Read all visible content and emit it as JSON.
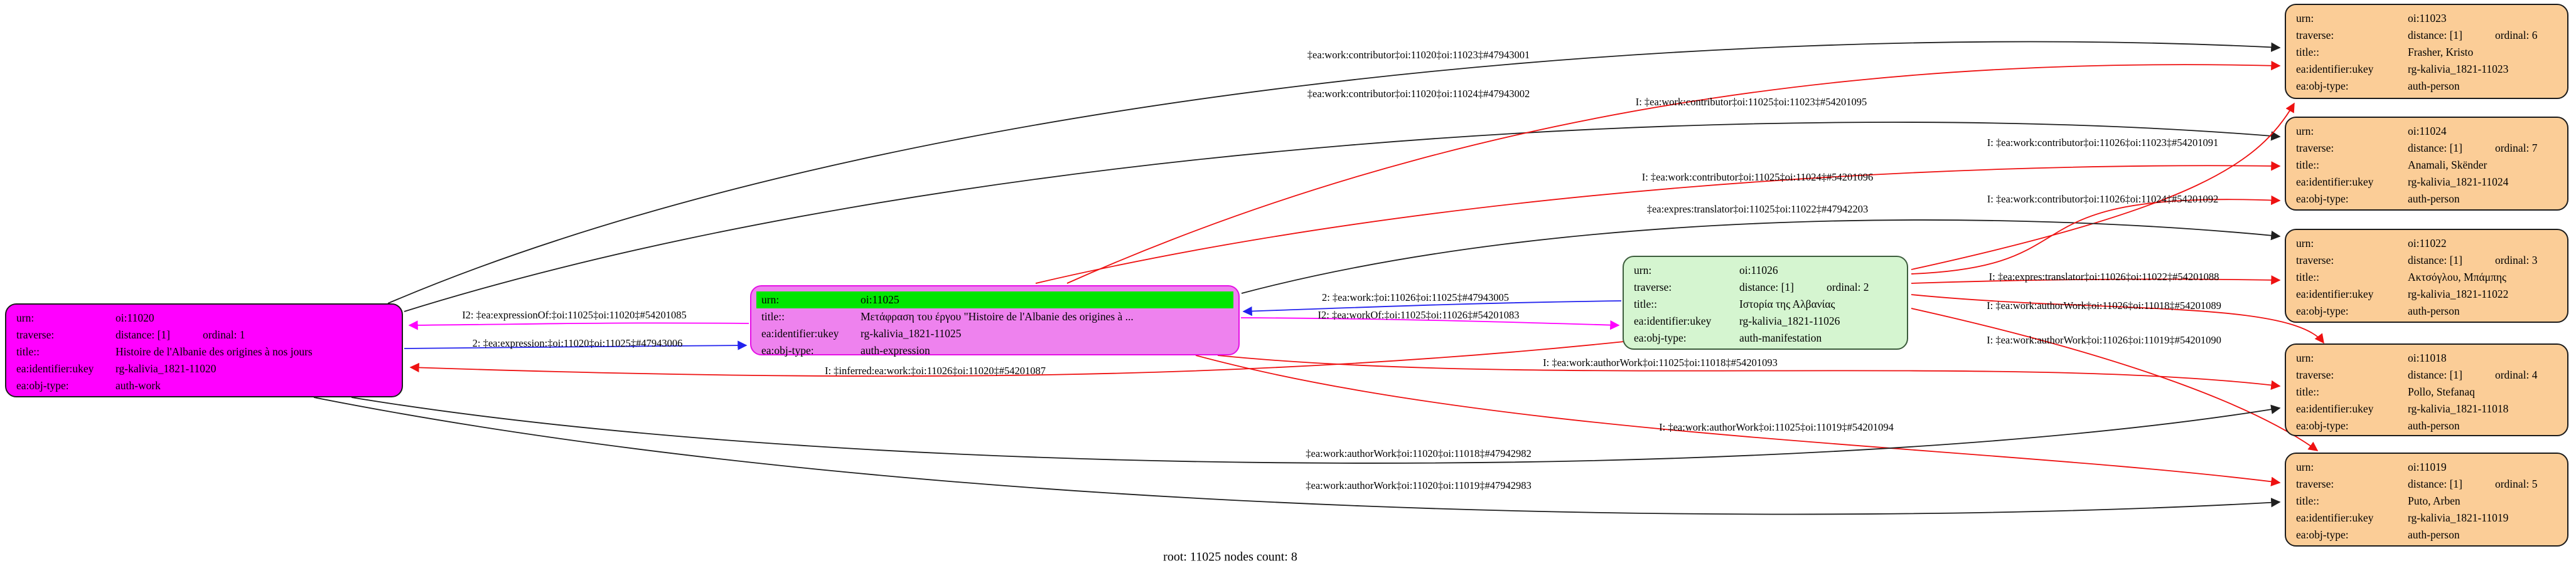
{
  "footer": "root: 11025 nodes count: 8",
  "colors": {
    "black": "#1f1f1f",
    "red": "#ee1111",
    "blue": "#2222ee",
    "magenta": "#ff00ff",
    "work_fill": "#ff00ff",
    "expression_fill": "#ee82ee",
    "expression_urn_highlight": "#00e500",
    "manifestation_fill": "#d5f5d0",
    "person_fill": "#fbcd97"
  },
  "nodes": [
    {
      "id": "oi:11020",
      "fill": "work_fill",
      "type": "auth-work",
      "rows": [
        {
          "key": "urn:",
          "value": "oi:11020"
        },
        {
          "key": "traverse:",
          "value": "distance: [1]",
          "value2": "ordinal: 1"
        },
        {
          "key": "title::",
          "value": "Histoire de l'Albanie des origines à nos jours"
        },
        {
          "key": "ea:identifier:ukey",
          "value": "rg-kalivia_1821-11020"
        },
        {
          "key": "ea:obj-type:",
          "value": "auth-work"
        }
      ]
    },
    {
      "id": "oi:11025",
      "fill": "expression_fill",
      "type": "auth-expression",
      "rows": [
        {
          "key": "urn:",
          "value": "oi:11025",
          "highlight": true
        },
        {
          "key": "title::",
          "value": "Μετάφραση του έργου \"Histoire de l'Albanie des origines à ..."
        },
        {
          "key": "ea:identifier:ukey",
          "value": "rg-kalivia_1821-11025"
        },
        {
          "key": "ea:obj-type:",
          "value": "auth-expression"
        }
      ]
    },
    {
      "id": "oi:11026",
      "fill": "manifestation_fill",
      "type": "auth-manifestation",
      "rows": [
        {
          "key": "urn:",
          "value": "oi:11026"
        },
        {
          "key": "traverse:",
          "value": "distance: [1]",
          "value2": "ordinal: 2"
        },
        {
          "key": "title::",
          "value": "Ιστορία της Αλβανίας"
        },
        {
          "key": "ea:identifier:ukey",
          "value": "rg-kalivia_1821-11026"
        },
        {
          "key": "ea:obj-type:",
          "value": "auth-manifestation"
        }
      ]
    },
    {
      "id": "oi:11023",
      "fill": "person_fill",
      "type": "auth-person",
      "rows": [
        {
          "key": "urn:",
          "value": "oi:11023"
        },
        {
          "key": "traverse:",
          "value": "distance: [1]",
          "value2": "ordinal: 6"
        },
        {
          "key": "title::",
          "value": "Frasher, Kristo"
        },
        {
          "key": "ea:identifier:ukey",
          "value": "rg-kalivia_1821-11023"
        },
        {
          "key": "ea:obj-type:",
          "value": "auth-person"
        }
      ]
    },
    {
      "id": "oi:11024",
      "fill": "person_fill",
      "type": "auth-person",
      "rows": [
        {
          "key": "urn:",
          "value": "oi:11024"
        },
        {
          "key": "traverse:",
          "value": "distance: [1]",
          "value2": "ordinal: 7"
        },
        {
          "key": "title::",
          "value": "Anamali, Skënder"
        },
        {
          "key": "ea:identifier:ukey",
          "value": "rg-kalivia_1821-11024"
        },
        {
          "key": "ea:obj-type:",
          "value": "auth-person"
        }
      ]
    },
    {
      "id": "oi:11022",
      "fill": "person_fill",
      "type": "auth-person",
      "rows": [
        {
          "key": "urn:",
          "value": "oi:11022"
        },
        {
          "key": "traverse:",
          "value": "distance: [1]",
          "value2": "ordinal: 3"
        },
        {
          "key": "title::",
          "value": "Ακτσόγλου, Μπάμπης"
        },
        {
          "key": "ea:identifier:ukey",
          "value": "rg-kalivia_1821-11022"
        },
        {
          "key": "ea:obj-type:",
          "value": "auth-person"
        }
      ]
    },
    {
      "id": "oi:11018",
      "fill": "person_fill",
      "type": "auth-person",
      "rows": [
        {
          "key": "urn:",
          "value": "oi:11018"
        },
        {
          "key": "traverse:",
          "value": "distance: [1]",
          "value2": "ordinal: 4"
        },
        {
          "key": "title::",
          "value": "Pollo, Stefanaq"
        },
        {
          "key": "ea:identifier:ukey",
          "value": "rg-kalivia_1821-11018"
        },
        {
          "key": "ea:obj-type:",
          "value": "auth-person"
        }
      ]
    },
    {
      "id": "oi:11019",
      "fill": "person_fill",
      "type": "auth-person",
      "rows": [
        {
          "key": "urn:",
          "value": "oi:11019"
        },
        {
          "key": "traverse:",
          "value": "distance: [1]",
          "value2": "ordinal: 5"
        },
        {
          "key": "title::",
          "value": "Puto, Arben"
        },
        {
          "key": "ea:identifier:ukey",
          "value": "rg-kalivia_1821-11019"
        },
        {
          "key": "ea:obj-type:",
          "value": "auth-person"
        }
      ]
    }
  ],
  "edges": [
    {
      "label": "‡ea:work:contributor‡oi:11020‡oi:11023‡#47943001",
      "color": "black",
      "from": "oi:11020",
      "to": "oi:11023"
    },
    {
      "label": "‡ea:work:contributor‡oi:11020‡oi:11024‡#47943002",
      "color": "black",
      "from": "oi:11020",
      "to": "oi:11024"
    },
    {
      "label": "I: ‡ea:work:contributor‡oi:11025‡oi:11023‡#54201095",
      "color": "red",
      "from": "oi:11025",
      "to": "oi:11023"
    },
    {
      "label": "I: ‡ea:work:contributor‡oi:11026‡oi:11023‡#54201091",
      "color": "red",
      "from": "oi:11026",
      "to": "oi:11023"
    },
    {
      "label": "I: ‡ea:work:contributor‡oi:11025‡oi:11024‡#54201096",
      "color": "red",
      "from": "oi:11025",
      "to": "oi:11024"
    },
    {
      "label": "‡ea:expres:translator‡oi:11025‡oi:11022‡#47942203",
      "color": "black",
      "from": "oi:11025",
      "to": "oi:11022"
    },
    {
      "label": "I: ‡ea:work:contributor‡oi:11026‡oi:11024‡#54201092",
      "color": "red",
      "from": "oi:11026",
      "to": "oi:11024"
    },
    {
      "label": "I: ‡ea:expres:translator‡oi:11026‡oi:11022‡#54201088",
      "color": "red",
      "from": "oi:11026",
      "to": "oi:11022"
    },
    {
      "label": "I: ‡ea:work:authorWork‡oi:11026‡oi:11018‡#54201089",
      "color": "red",
      "from": "oi:11026",
      "to": "oi:11018"
    },
    {
      "label": "I: ‡ea:work:authorWork‡oi:11026‡oi:11019‡#54201090",
      "color": "red",
      "from": "oi:11026",
      "to": "oi:11019"
    },
    {
      "label": "I: ‡ea:work:authorWork‡oi:11025‡oi:11018‡#54201093",
      "color": "red",
      "from": "oi:11025",
      "to": "oi:11018"
    },
    {
      "label": "I: ‡ea:work:authorWork‡oi:11025‡oi:11019‡#54201094",
      "color": "red",
      "from": "oi:11025",
      "to": "oi:11019"
    },
    {
      "label": "‡ea:work:authorWork‡oi:11020‡oi:11018‡#47942982",
      "color": "black",
      "from": "oi:11020",
      "to": "oi:11018"
    },
    {
      "label": "‡ea:work:authorWork‡oi:11020‡oi:11019‡#47942983",
      "color": "black",
      "from": "oi:11020",
      "to": "oi:11019"
    },
    {
      "label": "I2: ‡ea:expressionOf:‡oi:11025‡oi:11020‡#54201085",
      "color": "magenta",
      "from": "oi:11025",
      "to": "oi:11020"
    },
    {
      "label": "2: ‡ea:expression:‡oi:11020‡oi:11025‡#47943006",
      "color": "blue",
      "from": "oi:11020",
      "to": "oi:11025"
    },
    {
      "label": "2: ‡ea:work:‡oi:11026‡oi:11025‡#47943005",
      "color": "blue",
      "from": "oi:11026",
      "to": "oi:11025"
    },
    {
      "label": "I2: ‡ea:workOf:‡oi:11025‡oi:11026‡#54201083",
      "color": "magenta",
      "from": "oi:11025",
      "to": "oi:11026"
    },
    {
      "label": "I: ‡inferred:ea:work:‡oi:11026‡oi:11020‡#54201087",
      "color": "red",
      "from": "oi:11026",
      "to": "oi:11020"
    }
  ]
}
